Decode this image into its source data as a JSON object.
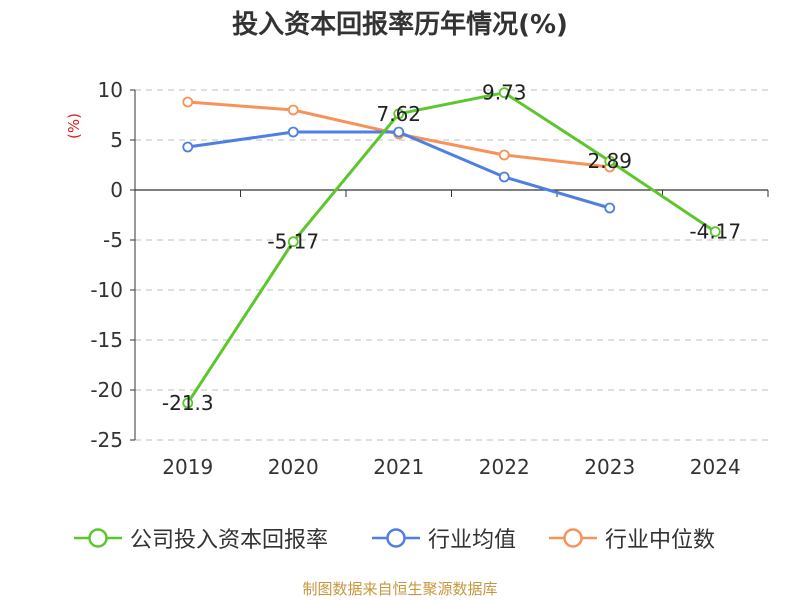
{
  "chart_data": {
    "type": "line",
    "title": "投入资本回报率历年情况(%)",
    "ylabel": "(%)",
    "xlabel": "",
    "categories": [
      "2019",
      "2020",
      "2021",
      "2022",
      "2023",
      "2024"
    ],
    "ylim": [
      -25,
      10
    ],
    "yticks": [
      10,
      5,
      0,
      -5,
      -10,
      -15,
      -20,
      -25
    ],
    "grid": true,
    "legend_position": "bottom",
    "series": [
      {
        "name": "公司投入资本回报率",
        "color": "#5cc72c",
        "values": [
          -21.3,
          -5.17,
          7.62,
          9.73,
          2.89,
          -4.17
        ],
        "labels": [
          "-21.3",
          "-5.17",
          "7.62",
          "9.73",
          "2.89",
          "-4.17"
        ]
      },
      {
        "name": "行业均值",
        "color": "#4f7fe0",
        "values": [
          4.3,
          5.8,
          5.8,
          1.3,
          -1.8,
          null
        ]
      },
      {
        "name": "行业中位数",
        "color": "#f7935a",
        "values": [
          8.8,
          8.0,
          5.6,
          3.5,
          2.3,
          null
        ]
      }
    ]
  },
  "source": "制图数据来自恒生聚源数据库"
}
